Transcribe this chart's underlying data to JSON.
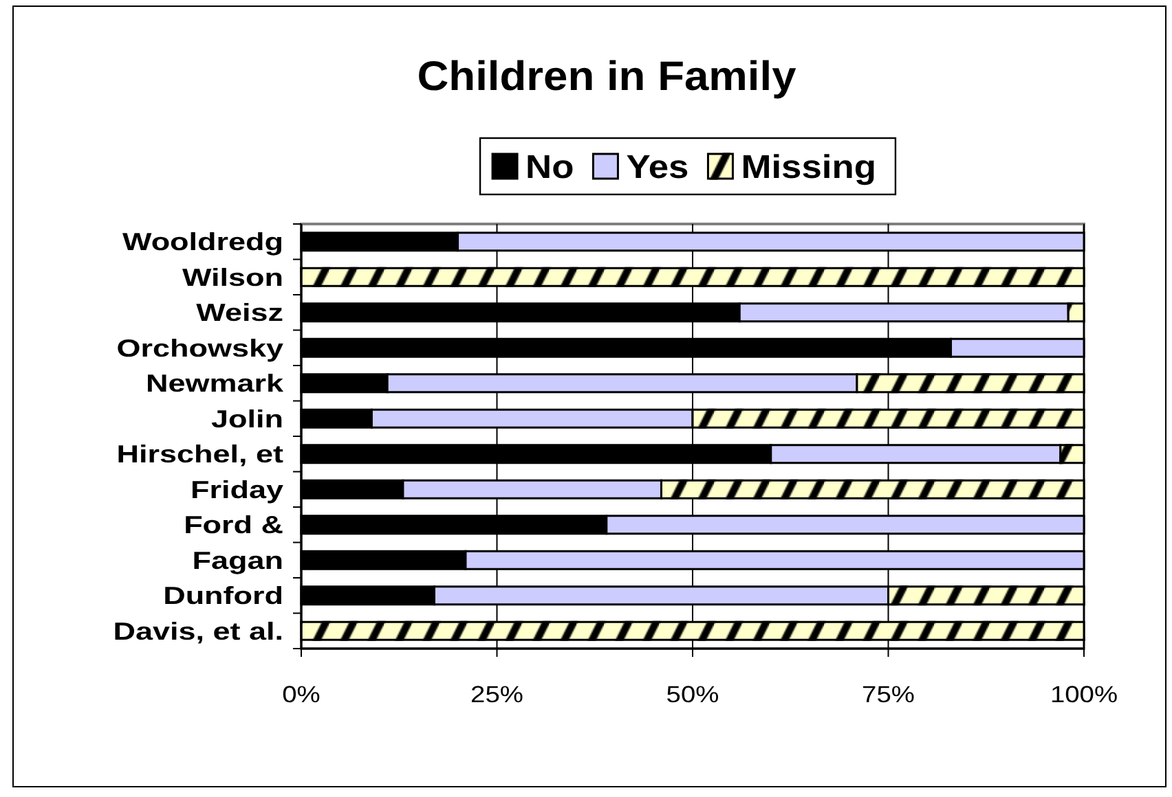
{
  "chart_data": {
    "type": "bar",
    "title": "Children in Family",
    "orientation": "horizontal",
    "stacked": true,
    "categories": [
      "Wooldredg",
      "Wilson",
      "Weisz",
      "Orchowsky",
      "Newmark",
      "Jolin",
      "Hirschel, et",
      "Friday",
      "Ford &",
      "Fagan",
      "Dunford",
      "Davis, et al."
    ],
    "series": [
      {
        "name": "No",
        "color": "#000000",
        "values": [
          20,
          0,
          56,
          83,
          11,
          9,
          60,
          13,
          39,
          21,
          17,
          0
        ]
      },
      {
        "name": "Yes",
        "color": "#ccccff",
        "values": [
          80,
          0,
          42,
          17,
          60,
          41,
          37,
          33,
          61,
          79,
          58,
          0
        ]
      },
      {
        "name": "Missing",
        "color": "#ffffcc",
        "values": [
          0,
          100,
          2,
          0,
          29,
          50,
          3,
          54,
          0,
          0,
          25,
          100
        ]
      }
    ],
    "xlim": [
      0,
      100
    ],
    "xticks": [
      {
        "value": 0,
        "label": "0%"
      },
      {
        "value": 25,
        "label": "25%"
      },
      {
        "value": 50,
        "label": "50%"
      },
      {
        "value": 75,
        "label": "75%"
      },
      {
        "value": 100,
        "label": "100%"
      }
    ],
    "grid": "x",
    "legend": "top"
  }
}
